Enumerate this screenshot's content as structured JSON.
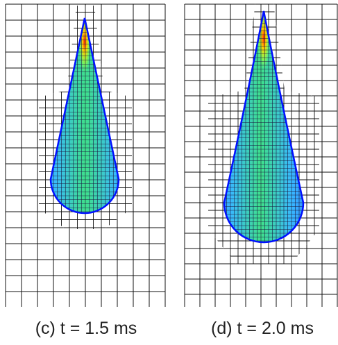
{
  "panels": [
    {
      "caption": "(c) t = 1.5 ms"
    },
    {
      "caption": "(d) t = 2.0 ms"
    }
  ]
}
